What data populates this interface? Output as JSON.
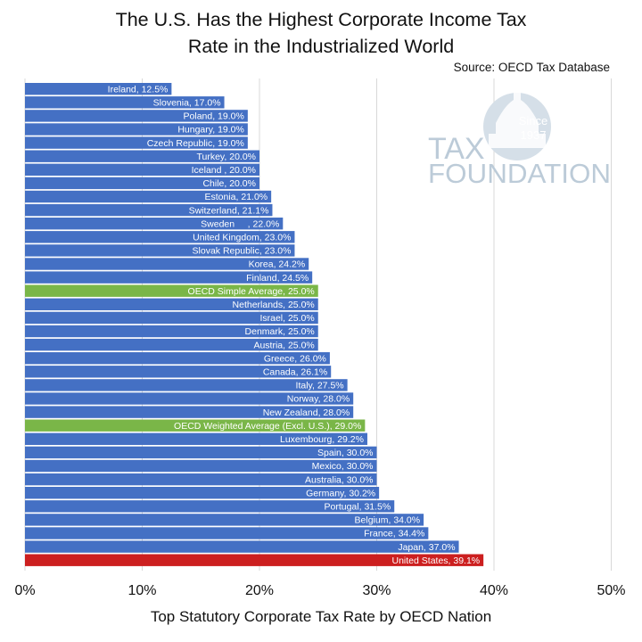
{
  "title_line1": "The U.S. Has the Highest Corporate Income Tax",
  "title_line2": "Rate in the Industrialized World",
  "source": "Source: OECD Tax Database",
  "logo": {
    "top_text": "Since",
    "year": "1937",
    "line1": "TAX",
    "line2": "FOUNDATION"
  },
  "colors": {
    "default": "#4470c4",
    "average": "#7ab648",
    "highlight": "#cc1f1f",
    "grid": "#d8d8d8",
    "logo": "#bccbd8"
  },
  "chart_data": {
    "type": "bar",
    "orientation": "horizontal",
    "title": "The U.S. Has the Highest Corporate Income Tax Rate in the Industrialized World",
    "xlabel": "Top Statutory Corporate Tax Rate by OECD Nation",
    "ylabel": "",
    "xlim": [
      0,
      50
    ],
    "xticks": [
      "0%",
      "10%",
      "20%",
      "30%",
      "40%",
      "50%"
    ],
    "grid": true,
    "categories": [
      "Ireland, 12.5%",
      "Slovenia, 17.0%",
      "Poland, 19.0%",
      "Hungary, 19.0%",
      "Czech Republic, 19.0%",
      "Turkey, 20.0%",
      "Iceland , 20.0%",
      "Chile, 20.0%",
      "Estonia, 21.0%",
      "Switzerland, 21.1%",
      "Sweden     , 22.0%",
      "United Kingdom, 23.0%",
      "Slovak Republic, 23.0%",
      "Korea, 24.2%",
      "Finland, 24.5%",
      "OECD Simple Average, 25.0%",
      "Netherlands, 25.0%",
      "Israel, 25.0%",
      "Denmark, 25.0%",
      "Austria, 25.0%",
      "Greece, 26.0%",
      "Canada, 26.1%",
      "Italy, 27.5%",
      "Norway, 28.0%",
      "New Zealand, 28.0%",
      "OECD Weighted Average (Excl. U.S.), 29.0%",
      "Luxembourg, 29.2%",
      "Spain, 30.0%",
      "Mexico, 30.0%",
      "Australia, 30.0%",
      "Germany, 30.2%",
      "Portugal, 31.5%",
      "Belgium, 34.0%",
      "France, 34.4%",
      "Japan, 37.0%",
      "United States, 39.1%"
    ],
    "values": [
      12.5,
      17.0,
      19.0,
      19.0,
      19.0,
      20.0,
      20.0,
      20.0,
      21.0,
      21.1,
      22.0,
      23.0,
      23.0,
      24.2,
      24.5,
      25.0,
      25.0,
      25.0,
      25.0,
      25.0,
      26.0,
      26.1,
      27.5,
      28.0,
      28.0,
      29.0,
      29.2,
      30.0,
      30.0,
      30.0,
      30.2,
      31.5,
      34.0,
      34.4,
      37.0,
      39.1
    ],
    "highlight": {
      "average_indices": [
        15,
        25
      ],
      "highlight_indices": [
        35
      ]
    }
  }
}
